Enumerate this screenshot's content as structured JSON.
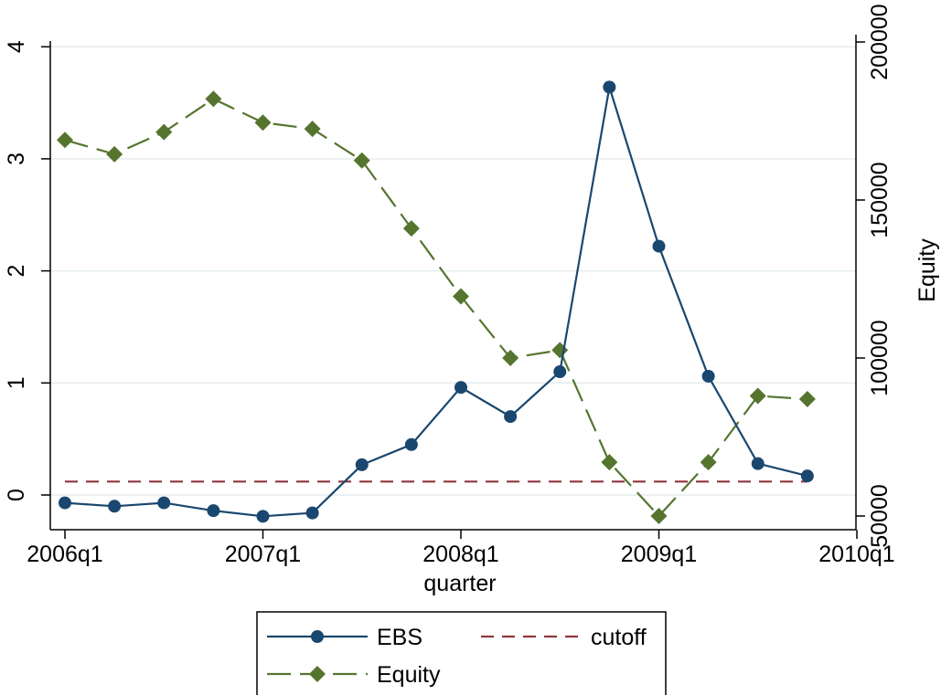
{
  "chart_data": {
    "type": "line",
    "title": "",
    "xlabel": "quarter",
    "ylabel": "",
    "y2label": "Equity",
    "x_ticks": [
      "2006q1",
      "2007q1",
      "2008q1",
      "2009q1",
      "2010q1"
    ],
    "y_ticks": [
      "0",
      "1",
      "2",
      "3",
      "4"
    ],
    "y2_ticks": [
      "50000",
      "100000",
      "150000",
      "200000"
    ],
    "ylim": [
      0,
      4
    ],
    "y2lim": [
      50000,
      200000
    ],
    "grid": true,
    "legend_position": "bottom",
    "x": [
      "2006q1",
      "2006q2",
      "2006q3",
      "2006q4",
      "2007q1",
      "2007q2",
      "2007q3",
      "2007q4",
      "2008q1",
      "2008q2",
      "2008q3",
      "2008q4",
      "2009q1",
      "2009q2",
      "2009q3",
      "2009q4"
    ],
    "series": [
      {
        "name": "EBS",
        "axis": "left",
        "color": "#1a476f",
        "marker": "circle",
        "line": "solid",
        "values": [
          -0.07,
          -0.1,
          -0.07,
          -0.14,
          -0.19,
          -0.16,
          0.27,
          0.45,
          0.96,
          0.7,
          1.1,
          3.64,
          2.22,
          1.06,
          0.28,
          0.17
        ]
      },
      {
        "name": "Equity",
        "axis": "right",
        "color": "#55752f",
        "marker": "diamond",
        "line": "longdash",
        "values": [
          169000,
          164500,
          171500,
          182000,
          174500,
          172500,
          162500,
          141000,
          119500,
          100000,
          102500,
          67000,
          50000,
          67000,
          88000,
          87000
        ]
      },
      {
        "name": "cutoff",
        "axis": "left",
        "color": "#90353b",
        "marker": "none",
        "line": "dashed",
        "values": [
          0.12,
          0.12,
          0.12,
          0.12,
          0.12,
          0.12,
          0.12,
          0.12,
          0.12,
          0.12,
          0.12,
          0.12,
          0.12,
          0.12,
          0.12,
          0.12
        ]
      }
    ]
  }
}
